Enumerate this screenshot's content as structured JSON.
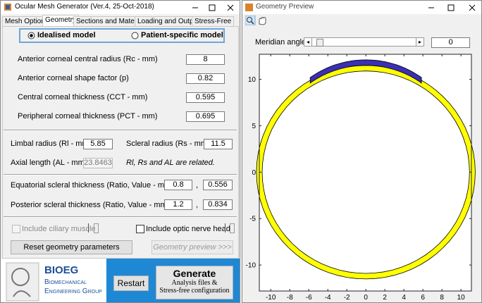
{
  "main_window": {
    "title": "Ocular Mesh Generator (Ver.4, 25-Oct-2018)",
    "tabs": [
      "Mesh Options",
      "Geometry",
      "Sections and Materials",
      "Loading and Output",
      "Stress-Free"
    ],
    "model_options": [
      "Idealised model",
      "Patient-specific model"
    ],
    "cornea_fields": [
      {
        "label": "Anterior corneal central radius (Rc - mm)",
        "value": "8"
      },
      {
        "label": "Anterior corneal shape factor (p)",
        "value": "0.82"
      },
      {
        "label": "Central corneal thickness (CCT - mm)",
        "value": "0.595"
      },
      {
        "label": "Peripheral corneal thickness (PCT - mm)",
        "value": "0.695"
      }
    ],
    "limbal_radius": {
      "label": "Limbal radius (Rl - mm)",
      "value": "5.85"
    },
    "scleral_radius": {
      "label": "Scleral radius (Rs - mm)",
      "value": "11.5"
    },
    "axial_length": {
      "label": "Axial length (AL - mm)",
      "value": "23.8463"
    },
    "related_note": "Rl, Rs and AL are related.",
    "equatorial": {
      "label": "Equatorial scleral thickness (Ratio, Value - mm)",
      "ratio": "0.8",
      "value": "0.556"
    },
    "posterior": {
      "label": "Posterior scleral thickness (Ratio, Value - mm)",
      "ratio": "1.2",
      "value": "0.834"
    },
    "separator": ",",
    "checkboxes": [
      "Include ciliary muscle",
      "Include optic nerve head"
    ],
    "buttons": {
      "reset": "Reset geometry parameters",
      "preview": "Geometry preview >>>",
      "restart": "Restart"
    },
    "generate": {
      "title": "Generate",
      "line1": "Analysis files &",
      "line2": "Stress-free configuration"
    },
    "logo": {
      "name": "BIOEG",
      "line1": "Biomechanical",
      "line2": "Engineering Group"
    }
  },
  "preview": {
    "title": "Geometry Preview",
    "meridian_label": "Meridian angle:",
    "meridian_value": "0",
    "xlim": [
      -11.2,
      11.1
    ],
    "ylim": [
      -12.8,
      12.7
    ],
    "xticks": [
      -10,
      -8,
      -6,
      -4,
      -2,
      0,
      2,
      4,
      6,
      8,
      10
    ],
    "yticks": [
      -10,
      -5,
      0,
      5,
      10
    ]
  }
}
